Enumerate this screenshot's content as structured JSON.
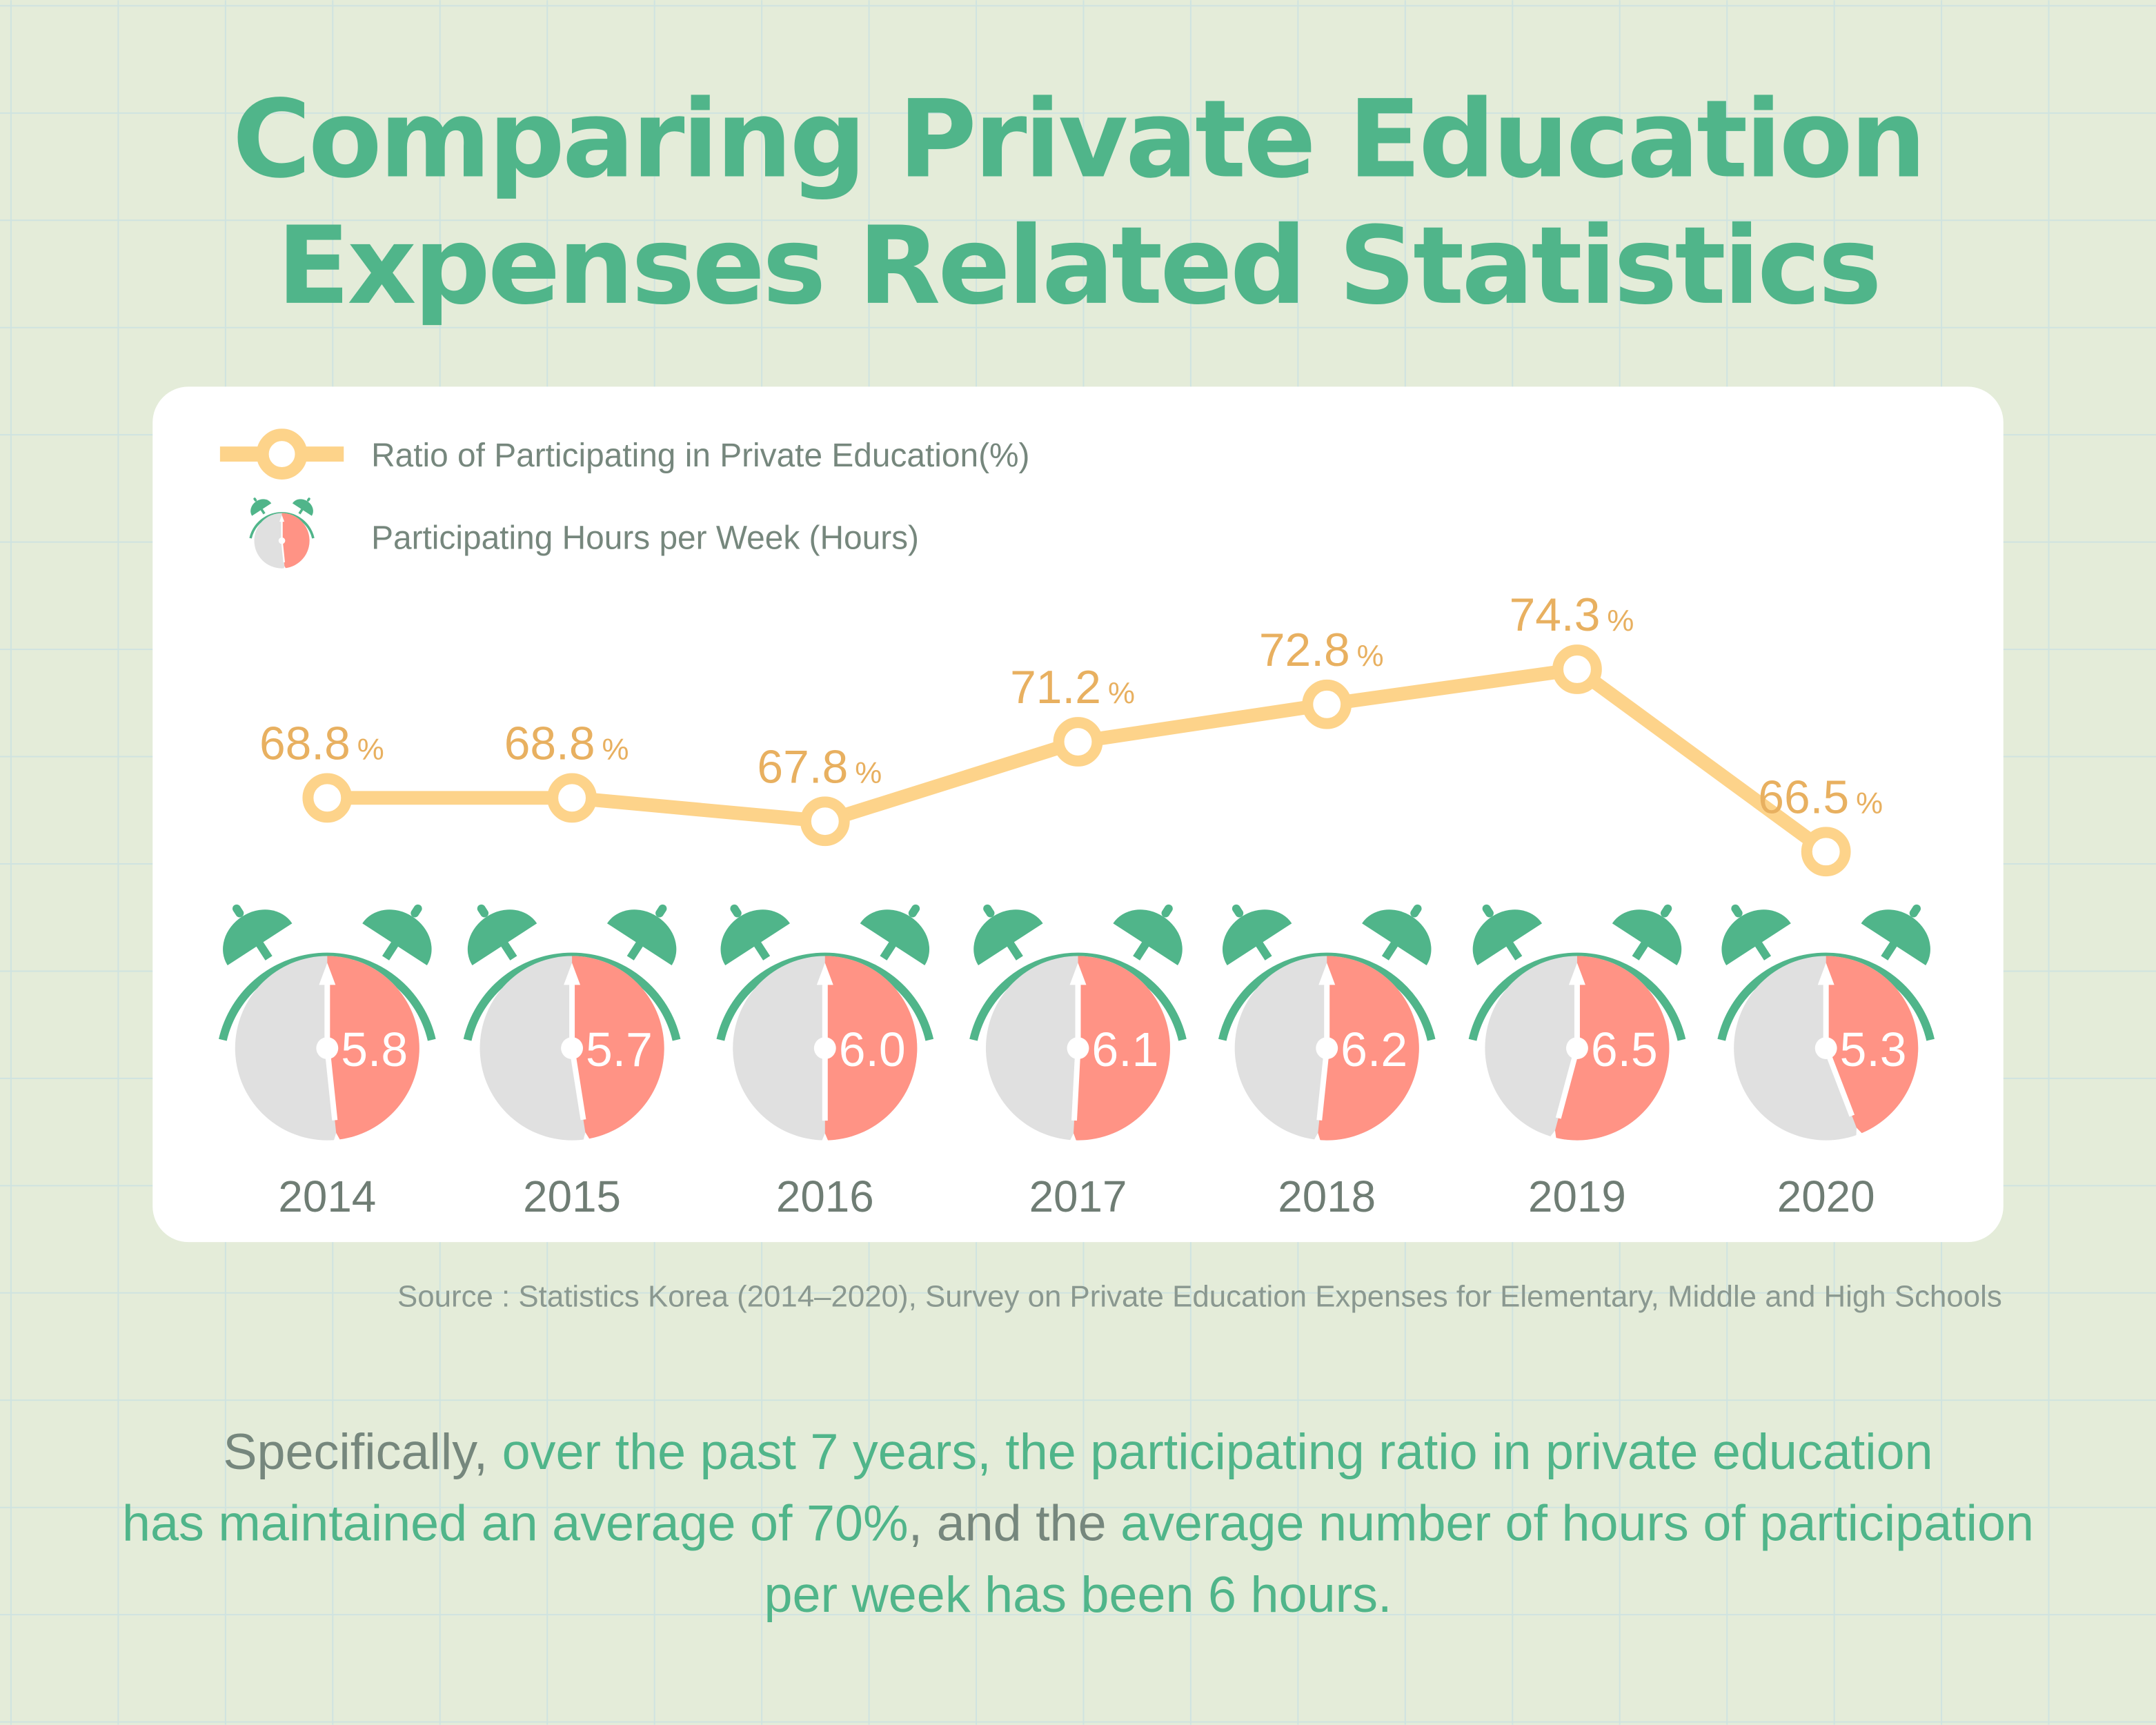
{
  "title": {
    "line1": "Comparing Private Education",
    "line2": "Expenses Related Statistics"
  },
  "colors": {
    "green": "#50b58a",
    "line": "#fdd38a",
    "label": "#e8b060",
    "red": "#ff9385",
    "gray": "#e0e0e0"
  },
  "chart_data": {
    "type": "line",
    "categories": [
      "2014",
      "2015",
      "2016",
      "2017",
      "2018",
      "2019",
      "2020"
    ],
    "series": [
      {
        "name": "Ratio of Participating in Private Education(%)",
        "values": [
          68.8,
          68.8,
          67.8,
          71.2,
          72.8,
          74.3,
          66.5
        ],
        "unit": "%"
      },
      {
        "name": "Participating Hours per Week (Hours)",
        "values": [
          5.8,
          5.7,
          6.0,
          6.1,
          6.2,
          6.5,
          5.3
        ],
        "display": [
          "5.8",
          "5.7",
          "6.0",
          "6.1",
          "6.2",
          "6.5",
          "5.3"
        ],
        "max": 12
      }
    ],
    "legend": [
      "Ratio of Participating in Private Education(%)",
      "Participating Hours per Week (Hours)"
    ],
    "legend_position": "top-left"
  },
  "source": "Source : Statistics Korea (2014–2020), Survey on Private Education Expenses for Elementary, Middle and High Schools",
  "summary": {
    "l1a": "Specifically, ",
    "l1b": "over the past 7 years, the participating ratio in private education",
    "l2a": "has maintained an average of 70%",
    "l2b": ", and the ",
    "l2c": "average number of hours of participation",
    "l3": "per week has been 6 hours."
  }
}
